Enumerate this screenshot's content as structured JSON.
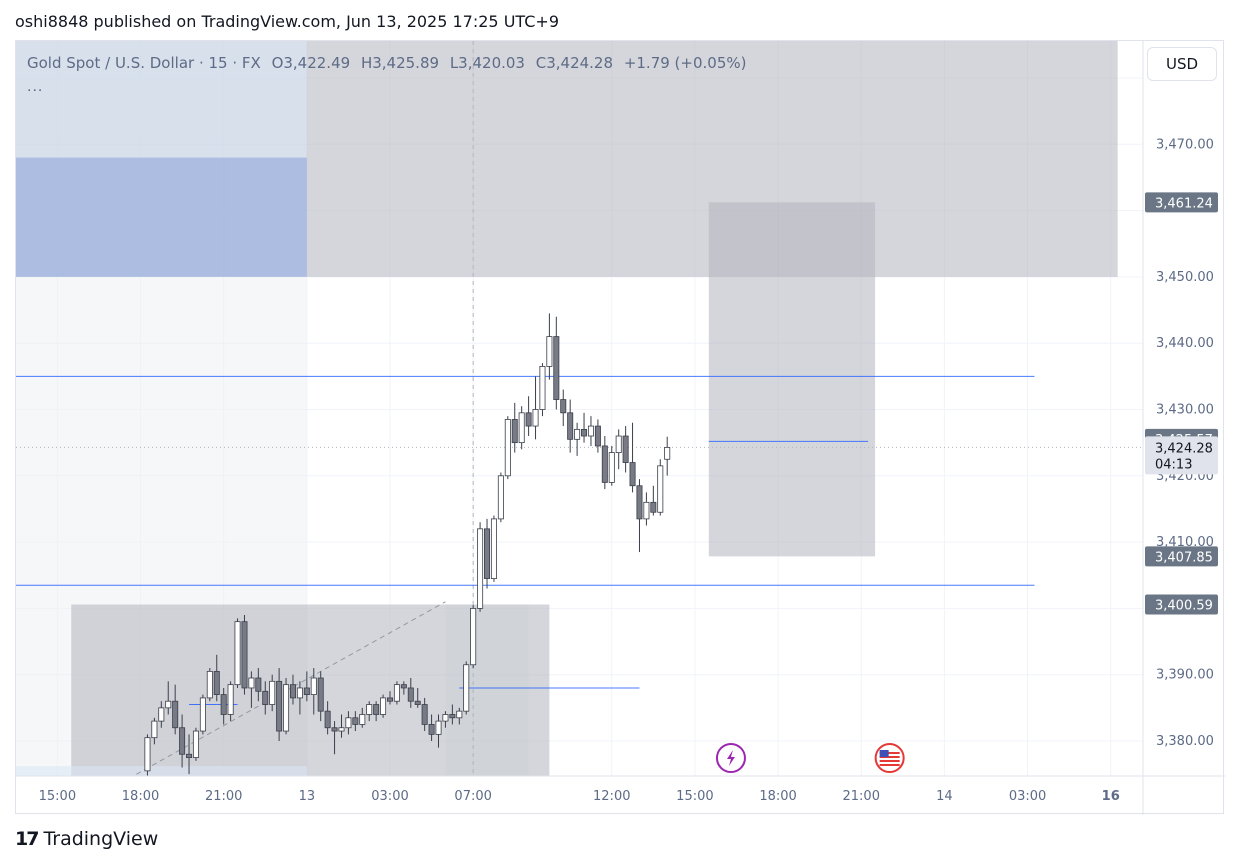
{
  "header": {
    "publisher": "oshi8848 published on TradingView.com, Jun 13, 2025 17:25 UTC+9"
  },
  "legend": {
    "symbol": "Gold Spot / U.S. Dollar · 15 · FX",
    "open": "O3,422.49",
    "high": "H3,425.89",
    "low": "L3,420.03",
    "close": "C3,424.28",
    "change": "+1.79 (+0.05%)",
    "more": "..."
  },
  "currency_button": "USD",
  "footer": {
    "brand": "TradingView",
    "logo_mark": "17"
  },
  "colors": {
    "candle_up": "#ffffff",
    "candle_down": "#787b86",
    "candle_border": "#3a3f4a",
    "level_line": "#2962ff",
    "price_tag": "#6a7685",
    "zone_gray": "#b2b5be",
    "zone_blue": "#9fb4e3",
    "event_icon_purple": "#9c27b0",
    "event_icon_us": "#e53935"
  },
  "event_icons": [
    "lightning-event-icon",
    "us-flag-event-icon"
  ],
  "chart_data": {
    "type": "candlestick",
    "ylim": [
      3375,
      3480
    ],
    "y_ticks": [
      {
        "value": 3470,
        "label": "3,470.00"
      },
      {
        "value": 3450,
        "label": "3,450.00"
      },
      {
        "value": 3440,
        "label": "3,440.00"
      },
      {
        "value": 3430,
        "label": "3,430.00"
      },
      {
        "value": 3420,
        "label": "3,420.00"
      },
      {
        "value": 3410,
        "label": "3,410.00"
      },
      {
        "value": 3390,
        "label": "3,390.00"
      },
      {
        "value": 3380,
        "label": "3,380.00"
      }
    ],
    "x_ticks": [
      {
        "label": "15:00",
        "bar": -48
      },
      {
        "label": "18:00",
        "bar": -36
      },
      {
        "label": "21:00",
        "bar": -24
      },
      {
        "label": "13",
        "bar": -12
      },
      {
        "label": "03:00",
        "bar": 0
      },
      {
        "label": "07:00",
        "bar": 12,
        "bold": false
      },
      {
        "label": "12:00",
        "bar": 32
      },
      {
        "label": "15:00",
        "bar": 44
      },
      {
        "label": "18:00",
        "bar": 56
      },
      {
        "label": "21:00",
        "bar": 68
      },
      {
        "label": "14",
        "bar": 80
      },
      {
        "label": "03:00",
        "bar": 92
      },
      {
        "label": "16",
        "bar": 104,
        "bold": true
      }
    ],
    "price_tags": [
      {
        "value": 3461.24,
        "label": "3,461.24"
      },
      {
        "value": 3425.57,
        "label": "3,425.57"
      },
      {
        "value": 3424.28,
        "label": "3,424.28",
        "countdown": "04:13",
        "current": true
      },
      {
        "value": 3407.85,
        "label": "3,407.85"
      },
      {
        "value": 3400.59,
        "label": "3,400.59"
      }
    ],
    "levels": [
      {
        "value": 3435.0,
        "from_bar": -61,
        "to_bar": 93
      },
      {
        "value": 3403.5,
        "from_bar": -61,
        "to_bar": 93
      },
      {
        "value": 3388.0,
        "from_bar": 10,
        "to_bar": 36
      },
      {
        "value": 3425.2,
        "from_bar": 46,
        "to_bar": 69
      },
      {
        "value": 3385.5,
        "from_bar": -29,
        "to_bar": -22
      }
    ],
    "zones": [
      {
        "kind": "gray",
        "from_bar": -61,
        "to_bar": 105,
        "top": 3490,
        "bottom": 3450.0
      },
      {
        "kind": "blue",
        "from_bar": -61,
        "to_bar": -12,
        "top": 3468.0,
        "bottom": 3450.0
      },
      {
        "kind": "lightblue",
        "from_bar": -61,
        "to_bar": -12,
        "top": 3490,
        "bottom": 3468.0
      },
      {
        "kind": "faint",
        "from_bar": -61,
        "to_bar": -12,
        "top": 3450.0,
        "bottom": 3360
      },
      {
        "kind": "gray",
        "from_bar": -46,
        "to_bar": 23,
        "top": 3400.59,
        "bottom": 3360
      },
      {
        "kind": "grayfaint",
        "from_bar": 8,
        "to_bar": 20,
        "top": 3400.59,
        "bottom": 3360
      },
      {
        "kind": "gray",
        "from_bar": 46,
        "to_bar": 70,
        "top": 3461.24,
        "bottom": 3407.85
      },
      {
        "kind": "lightblue",
        "from_bar": -61,
        "to_bar": -12,
        "top": 3376.2,
        "bottom": 3360
      }
    ],
    "trend_line": {
      "from": {
        "bar": -40,
        "value": 3373
      },
      "to": {
        "bar": 8,
        "value": 3401
      }
    },
    "vertical_marker_bar": 12,
    "candles_start_bar": -35,
    "candles": [
      [
        3375.5,
        3381.0,
        3374.0,
        3380.5
      ],
      [
        3380.5,
        3383.5,
        3379.5,
        3383.0
      ],
      [
        3383.0,
        3386.0,
        3382.0,
        3385.0
      ],
      [
        3385.0,
        3389.0,
        3384.0,
        3386.0
      ],
      [
        3386.0,
        3388.5,
        3381.0,
        3382.0
      ],
      [
        3382.0,
        3384.0,
        3376.0,
        3378.0
      ],
      [
        3378.0,
        3381.0,
        3375.0,
        3377.5
      ],
      [
        3377.5,
        3382.0,
        3377.0,
        3381.5
      ],
      [
        3381.5,
        3387.0,
        3381.0,
        3386.5
      ],
      [
        3386.5,
        3391.0,
        3386.0,
        3390.5
      ],
      [
        3390.5,
        3393.0,
        3386.0,
        3387.0
      ],
      [
        3387.0,
        3388.0,
        3382.5,
        3384.0
      ],
      [
        3384.0,
        3389.0,
        3383.0,
        3388.5
      ],
      [
        3388.5,
        3398.5,
        3388.0,
        3398.0
      ],
      [
        3398.0,
        3399.0,
        3387.0,
        3388.0
      ],
      [
        3388.0,
        3390.5,
        3385.0,
        3389.5
      ],
      [
        3389.5,
        3391.0,
        3386.0,
        3387.5
      ],
      [
        3387.5,
        3389.0,
        3384.0,
        3385.5
      ],
      [
        3385.5,
        3390.0,
        3384.5,
        3389.0
      ],
      [
        3389.0,
        3391.0,
        3380.0,
        3381.5
      ],
      [
        3381.5,
        3389.5,
        3381.0,
        3388.5
      ],
      [
        3388.5,
        3390.0,
        3385.5,
        3386.5
      ],
      [
        3386.5,
        3389.0,
        3384.0,
        3388.0
      ],
      [
        3388.0,
        3390.5,
        3386.0,
        3387.0
      ],
      [
        3387.0,
        3391.0,
        3384.0,
        3389.5
      ],
      [
        3389.5,
        3390.5,
        3383.0,
        3384.5
      ],
      [
        3384.5,
        3386.0,
        3381.0,
        3382.0
      ],
      [
        3382.0,
        3383.0,
        3378.0,
        3381.5
      ],
      [
        3381.5,
        3384.0,
        3380.5,
        3382.0
      ],
      [
        3382.0,
        3384.5,
        3381.0,
        3383.5
      ],
      [
        3383.5,
        3384.5,
        3381.5,
        3382.5
      ],
      [
        3382.5,
        3385.0,
        3382.0,
        3384.0
      ],
      [
        3384.0,
        3386.0,
        3383.0,
        3385.5
      ],
      [
        3385.5,
        3386.0,
        3383.0,
        3384.0
      ],
      [
        3384.0,
        3387.0,
        3383.5,
        3386.5
      ],
      [
        3386.5,
        3387.5,
        3385.5,
        3386.0
      ],
      [
        3386.0,
        3389.0,
        3385.5,
        3388.5
      ],
      [
        3388.5,
        3389.0,
        3387.0,
        3388.0
      ],
      [
        3388.0,
        3389.5,
        3385.0,
        3386.0
      ],
      [
        3386.0,
        3388.0,
        3385.0,
        3385.5
      ],
      [
        3385.5,
        3386.5,
        3381.5,
        3382.5
      ],
      [
        3382.5,
        3384.0,
        3380.0,
        3381.0
      ],
      [
        3381.0,
        3384.0,
        3379.0,
        3383.0
      ],
      [
        3383.0,
        3384.5,
        3382.0,
        3384.0
      ],
      [
        3384.0,
        3385.5,
        3382.5,
        3383.5
      ],
      [
        3383.5,
        3385.0,
        3382.5,
        3384.5
      ],
      [
        3384.5,
        3392.0,
        3384.0,
        3391.5
      ],
      [
        3391.5,
        3400.5,
        3391.0,
        3400.0
      ],
      [
        3400.0,
        3413.0,
        3399.5,
        3412.0
      ],
      [
        3412.0,
        3413.5,
        3403.0,
        3404.5
      ],
      [
        3404.5,
        3414.0,
        3404.0,
        3413.5
      ],
      [
        3413.5,
        3420.5,
        3413.0,
        3420.0
      ],
      [
        3420.0,
        3429.0,
        3419.5,
        3428.5
      ],
      [
        3428.5,
        3431.0,
        3423.5,
        3425.0
      ],
      [
        3425.0,
        3430.5,
        3424.0,
        3429.5
      ],
      [
        3429.5,
        3432.0,
        3426.0,
        3427.5
      ],
      [
        3427.5,
        3435.0,
        3425.5,
        3430.0
      ],
      [
        3430.0,
        3437.0,
        3429.0,
        3436.5
      ],
      [
        3436.5,
        3444.5,
        3434.5,
        3441.0
      ],
      [
        3441.0,
        3444.0,
        3430.0,
        3431.5
      ],
      [
        3431.5,
        3433.0,
        3427.5,
        3429.5
      ],
      [
        3429.5,
        3431.5,
        3423.5,
        3425.5
      ],
      [
        3425.5,
        3428.0,
        3423.0,
        3427.0
      ],
      [
        3427.0,
        3429.5,
        3425.0,
        3426.0
      ],
      [
        3426.0,
        3429.0,
        3424.5,
        3427.5
      ],
      [
        3427.5,
        3428.5,
        3423.5,
        3424.5
      ],
      [
        3424.5,
        3426.0,
        3418.0,
        3419.0
      ],
      [
        3419.0,
        3424.5,
        3418.5,
        3423.5
      ],
      [
        3423.5,
        3427.0,
        3421.0,
        3426.0
      ],
      [
        3426.0,
        3427.5,
        3420.5,
        3422.0
      ],
      [
        3422.0,
        3428.0,
        3417.5,
        3418.5
      ],
      [
        3418.5,
        3419.5,
        3408.5,
        3413.5
      ],
      [
        3413.5,
        3417.5,
        3412.5,
        3416.0
      ],
      [
        3416.0,
        3418.5,
        3414.0,
        3414.5
      ],
      [
        3414.5,
        3422.5,
        3414.0,
        3421.5
      ],
      [
        3422.49,
        3425.89,
        3420.03,
        3424.28
      ]
    ]
  }
}
